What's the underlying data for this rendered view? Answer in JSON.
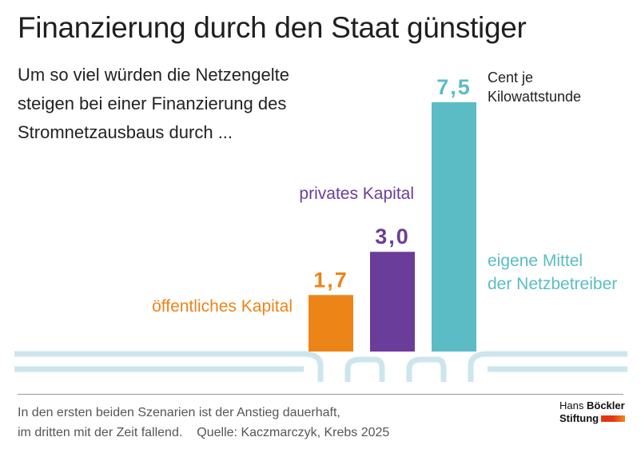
{
  "header": {
    "title": "Finanzierung durch den Staat günstiger",
    "subtitle": "Um so viel würden die Netzengelte steigen bei einer Finanzierung des Stromnetzausbaus durch ..."
  },
  "chart_data": {
    "type": "bar",
    "categories": [
      "öffentliches Kapital",
      "privates Kapital",
      "eigene Mittel der Netzbetreiber"
    ],
    "category_lines": [
      [
        "öffentliches Kapital"
      ],
      [
        "privates Kapital"
      ],
      [
        "eigene Mittel",
        "der Netzbetreiber"
      ]
    ],
    "values": [
      1.7,
      3.0,
      7.5
    ],
    "value_labels": [
      "1,7",
      "3,0",
      "7,5"
    ],
    "unit_lines": [
      "Cent je",
      "Kilowattstunde"
    ],
    "colors": [
      "#ec8417",
      "#6a3d9a",
      "#5bbcc6"
    ],
    "pipe_color": "#cde5ec",
    "ylim": [
      0,
      7.5
    ],
    "grid": false,
    "legend": "none"
  },
  "footer": {
    "note_line1": "In den ersten beiden Szenarien ist der Anstieg dauerhaft,",
    "note_line2": "im dritten mit der Zeit fallend.",
    "source": "Quelle: Kaczmarczyk, Krebs 2025"
  },
  "logo": {
    "line1_regular": "Hans",
    "line1_bold": "Böckler",
    "line2": "Stiftung"
  }
}
